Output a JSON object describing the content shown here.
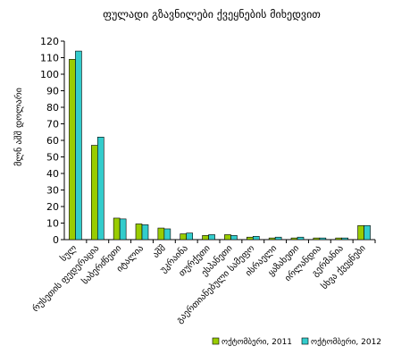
{
  "chart_data": {
    "type": "bar",
    "title": "ფულადი გზავნილები ქვეყნების მიხედვით",
    "ylabel": "მლნ აშშ დოლარი",
    "xlabel": "",
    "ylim": [
      0,
      120
    ],
    "ytick_step": 10,
    "grid": false,
    "legend_position": "bottom-right",
    "categories": [
      "სულ",
      "რუსეთის ფედერაცია",
      "საბერძნეთი",
      "იტალია",
      "აშშ",
      "უკრაინა",
      "თურქეთი",
      "ესპანეთი",
      "გაერთიანებული სამეფო",
      "ისრაელი",
      "ყაზახეთი",
      "ირლანდია",
      "გერმანია",
      "სხვა ქვეყნები"
    ],
    "series": [
      {
        "name": "ოქტომბერი, 2011",
        "color": "#99cc00",
        "values": [
          109,
          57,
          13,
          9.5,
          7,
          3.5,
          2.5,
          3,
          1.5,
          1,
          1,
          1,
          1,
          8.5
        ]
      },
      {
        "name": "ოქტომბერი, 2012",
        "color": "#33cccc",
        "values": [
          114,
          62,
          12.5,
          9,
          6.5,
          4,
          3,
          2.5,
          2,
          1.5,
          1.5,
          1,
          1,
          8.5
        ]
      }
    ]
  }
}
